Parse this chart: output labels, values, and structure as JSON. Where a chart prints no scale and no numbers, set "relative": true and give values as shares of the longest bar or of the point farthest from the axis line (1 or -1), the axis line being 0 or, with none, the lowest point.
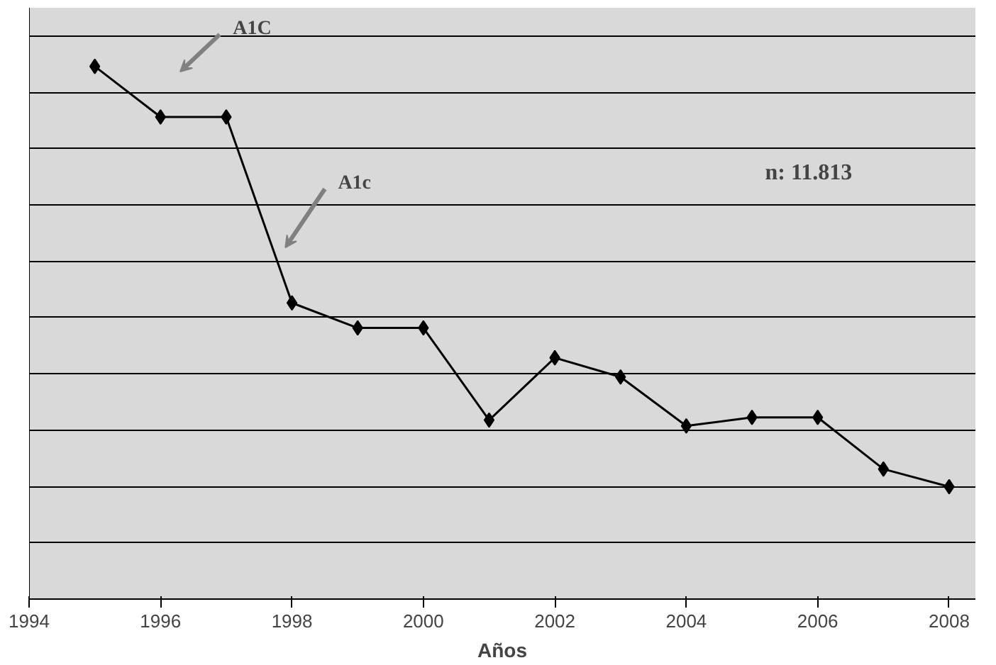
{
  "chart_data": {
    "type": "line",
    "xlabel": "Años",
    "relative": true,
    "grid": "y",
    "marker": "diamond",
    "line_style": "solid",
    "x": [
      1995,
      1996,
      1997,
      1998,
      1999,
      2000,
      2001,
      2002,
      2003,
      2004,
      2005,
      2006,
      2007,
      2008
    ],
    "series": [
      {
        "color": "#000000",
        "values": [
          1,
          0.905,
          0.905,
          0.556,
          0.509,
          0.509,
          0.336,
          0.453,
          0.417,
          0.325,
          0.341,
          0.341,
          0.244,
          0.211
        ]
      }
    ],
    "xlim": [
      1994,
      2008.4
    ],
    "xticks": [
      1994,
      1996,
      1998,
      2000,
      2002,
      2004,
      2006,
      2008
    ],
    "annotations": [
      "A1C",
      "A1c",
      "n: 11.813"
    ]
  }
}
